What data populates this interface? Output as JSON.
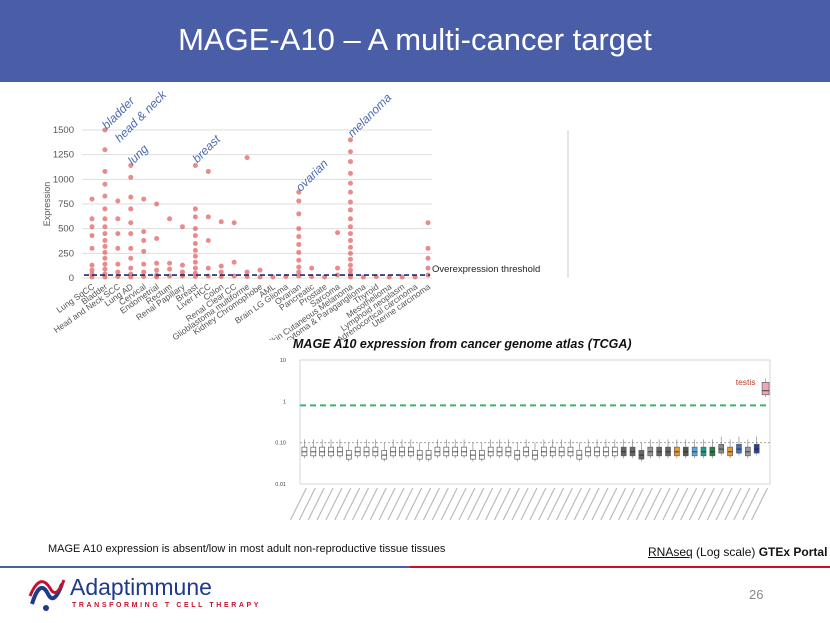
{
  "slide": {
    "title": "MAGE-A10 – A multi-cancer target",
    "page_number": "26"
  },
  "tcga": {
    "caption": "MAGE A10 expression from cancer genome atlas (TCGA)"
  },
  "footer": {
    "left_note": "MAGE A10 expression is absent/low in most adult non-reproductive tissue tissues",
    "right_note_underlined": "RNAseq",
    "right_note_middle": " (Log scale) ",
    "right_note_bold": "GTEx Portal"
  },
  "logo": {
    "name": "Adaptimmune",
    "tagline": "TRANSFORMING T CELL THERAPY",
    "icon": "adaptimmune-logo-icon"
  },
  "colors": {
    "header": "#4a5ea8",
    "dots": "#e05a5a",
    "threshold": "#1c2a6e",
    "annotation": "#4a6bb5",
    "gtex_threshold": "#3cb371",
    "testis_label": "#c0392b",
    "footer_line_left": "#4a5ea8",
    "footer_line_right": "#c8102e",
    "logo_blue": "#1e3a8a",
    "logo_red": "#c8102e"
  },
  "chart_data": [
    {
      "type": "scatter",
      "ylabel": "Expression",
      "ylim": [
        0,
        1500
      ],
      "yticks": [
        0,
        250,
        500,
        750,
        1000,
        1250,
        1500
      ],
      "grid": true,
      "categories": [
        "Lung SqCC",
        "Bladder",
        "Head and Neck SCC",
        "Lung AD",
        "Cervical",
        "Endometrial",
        "Rectum",
        "Renal Papillary",
        "Breast",
        "Liver HCC",
        "Colon",
        "Renal Clear CC",
        "Glioblastoma multiforme",
        "Kidney Chromophobe",
        "AML",
        "Brain LG Glioma",
        "Ovarian",
        "Pancreatic",
        "Prostate",
        "Sarcoma",
        "Skin Cutaneous Melanoma",
        "Pheochromocytoma & Paraganglioma",
        "Thyroid",
        "Mesothelioma",
        "Lymphoid neoplasm",
        "Adrenocortical carcinoma",
        "Uterine carcinoma"
      ],
      "series": [
        {
          "points": [
            [
              0,
              800
            ],
            [
              0,
              600
            ],
            [
              0,
              520
            ],
            [
              0,
              430
            ],
            [
              0,
              300
            ],
            [
              0,
              130
            ],
            [
              0,
              80
            ],
            [
              0,
              40
            ],
            [
              0,
              10
            ],
            [
              1,
              1500
            ],
            [
              1,
              1300
            ],
            [
              1,
              1080
            ],
            [
              1,
              950
            ],
            [
              1,
              830
            ],
            [
              1,
              700
            ],
            [
              1,
              600
            ],
            [
              1,
              520
            ],
            [
              1,
              450
            ],
            [
              1,
              380
            ],
            [
              1,
              320
            ],
            [
              1,
              260
            ],
            [
              1,
              200
            ],
            [
              1,
              140
            ],
            [
              1,
              90
            ],
            [
              1,
              40
            ],
            [
              1,
              10
            ],
            [
              2,
              780
            ],
            [
              2,
              600
            ],
            [
              2,
              450
            ],
            [
              2,
              300
            ],
            [
              2,
              140
            ],
            [
              2,
              60
            ],
            [
              2,
              15
            ],
            [
              3,
              1140
            ],
            [
              3,
              1020
            ],
            [
              3,
              820
            ],
            [
              3,
              700
            ],
            [
              3,
              560
            ],
            [
              3,
              450
            ],
            [
              3,
              300
            ],
            [
              3,
              200
            ],
            [
              3,
              100
            ],
            [
              3,
              40
            ],
            [
              3,
              10
            ],
            [
              4,
              800
            ],
            [
              4,
              470
            ],
            [
              4,
              380
            ],
            [
              4,
              270
            ],
            [
              4,
              140
            ],
            [
              4,
              60
            ],
            [
              4,
              15
            ],
            [
              5,
              750
            ],
            [
              5,
              400
            ],
            [
              5,
              150
            ],
            [
              5,
              80
            ],
            [
              5,
              30
            ],
            [
              5,
              10
            ],
            [
              6,
              600
            ],
            [
              6,
              150
            ],
            [
              6,
              90
            ],
            [
              6,
              20
            ],
            [
              7,
              520
            ],
            [
              7,
              130
            ],
            [
              7,
              60
            ],
            [
              7,
              20
            ],
            [
              8,
              1140
            ],
            [
              8,
              700
            ],
            [
              8,
              620
            ],
            [
              8,
              500
            ],
            [
              8,
              430
            ],
            [
              8,
              350
            ],
            [
              8,
              280
            ],
            [
              8,
              220
            ],
            [
              8,
              160
            ],
            [
              8,
              100
            ],
            [
              8,
              50
            ],
            [
              8,
              15
            ],
            [
              9,
              1080
            ],
            [
              9,
              620
            ],
            [
              9,
              380
            ],
            [
              9,
              100
            ],
            [
              9,
              20
            ],
            [
              10,
              570
            ],
            [
              10,
              120
            ],
            [
              10,
              60
            ],
            [
              10,
              15
            ],
            [
              11,
              560
            ],
            [
              11,
              160
            ],
            [
              11,
              20
            ],
            [
              12,
              1220
            ],
            [
              12,
              60
            ],
            [
              12,
              15
            ],
            [
              13,
              80
            ],
            [
              13,
              10
            ],
            [
              14,
              10
            ],
            [
              15,
              15
            ],
            [
              16,
              870
            ],
            [
              16,
              780
            ],
            [
              16,
              650
            ],
            [
              16,
              500
            ],
            [
              16,
              420
            ],
            [
              16,
              340
            ],
            [
              16,
              260
            ],
            [
              16,
              180
            ],
            [
              16,
              110
            ],
            [
              16,
              60
            ],
            [
              16,
              20
            ],
            [
              17,
              100
            ],
            [
              17,
              15
            ],
            [
              18,
              10
            ],
            [
              19,
              460
            ],
            [
              19,
              100
            ],
            [
              19,
              30
            ],
            [
              20,
              1400
            ],
            [
              20,
              1280
            ],
            [
              20,
              1180
            ],
            [
              20,
              1060
            ],
            [
              20,
              960
            ],
            [
              20,
              870
            ],
            [
              20,
              770
            ],
            [
              20,
              690
            ],
            [
              20,
              600
            ],
            [
              20,
              520
            ],
            [
              20,
              450
            ],
            [
              20,
              380
            ],
            [
              20,
              310
            ],
            [
              20,
              250
            ],
            [
              20,
              190
            ],
            [
              20,
              130
            ],
            [
              20,
              80
            ],
            [
              20,
              40
            ],
            [
              20,
              10
            ],
            [
              21,
              10
            ],
            [
              22,
              15
            ],
            [
              23,
              10
            ],
            [
              24,
              10
            ],
            [
              25,
              10
            ],
            [
              26,
              560
            ],
            [
              26,
              300
            ],
            [
              26,
              200
            ],
            [
              26,
              100
            ],
            [
              26,
              30
            ]
          ]
        }
      ],
      "threshold": {
        "value": 30,
        "label": "Overexpression threshold"
      },
      "annotations": [
        {
          "text": "bladder",
          "category_index": 1,
          "y": 1500
        },
        {
          "text": "head & neck",
          "category_index": 2,
          "y": 1370
        },
        {
          "text": "lung",
          "category_index": 3,
          "y": 1140
        },
        {
          "text": "breast",
          "category_index": 8,
          "y": 1160
        },
        {
          "text": "ovarian",
          "category_index": 16,
          "y": 870
        },
        {
          "text": "melanoma",
          "category_index": 20,
          "y": 1420
        }
      ]
    },
    {
      "type": "box",
      "scale": "log",
      "ylim": [
        0.01,
        10
      ],
      "yticks": [
        0.01,
        0.1,
        1,
        10
      ],
      "ytick_labels": [
        "0.01",
        "0.10",
        "1",
        "10"
      ],
      "threshold": 0.8,
      "annotation": {
        "text": "testis",
        "box_index": 52
      },
      "boxes": [
        0.06,
        0.06,
        0.06,
        0.06,
        0.06,
        0.05,
        0.06,
        0.06,
        0.06,
        0.05,
        0.06,
        0.06,
        0.06,
        0.05,
        0.05,
        0.06,
        0.06,
        0.06,
        0.06,
        0.05,
        0.05,
        0.06,
        0.06,
        0.06,
        0.05,
        0.06,
        0.05,
        0.06,
        0.06,
        0.06,
        0.06,
        0.05,
        0.06,
        0.06,
        0.06,
        0.06,
        0.06,
        0.06,
        0.05,
        0.06,
        0.06,
        0.06,
        0.06,
        0.06,
        0.06,
        0.06,
        0.06,
        0.07,
        0.06,
        0.07,
        0.06,
        0.07,
        1.8
      ]
    }
  ]
}
